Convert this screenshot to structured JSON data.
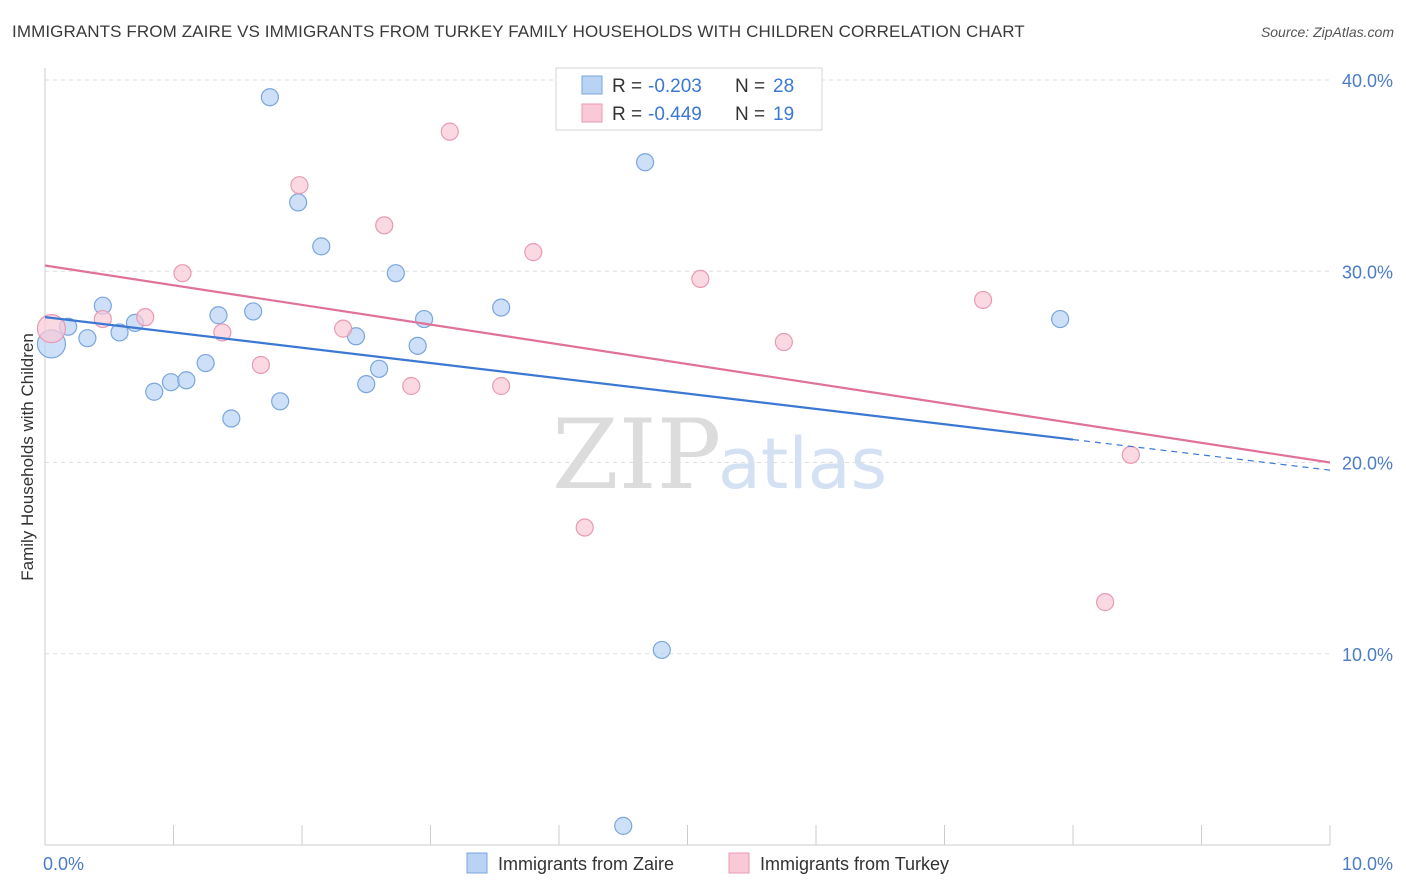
{
  "header": {
    "title": "IMMIGRANTS FROM ZAIRE VS IMMIGRANTS FROM TURKEY FAMILY HOUSEHOLDS WITH CHILDREN CORRELATION CHART",
    "source": "Source: ZipAtlas.com"
  },
  "watermark": {
    "part1": "ZIP",
    "part2": "atlas"
  },
  "colors": {
    "zaire_fill": "#b9d3f5",
    "zaire_stroke": "#7aa6de",
    "zaire_line": "#3b78d4",
    "turkey_fill": "#f9c9d7",
    "turkey_stroke": "#e99ab3",
    "turkey_line": "#e0729a",
    "tick_label": "#4a7cc7",
    "grid": "#dddddd"
  },
  "legend_top": {
    "rows": [
      {
        "r_label": "R = ",
        "r_value": "-0.203",
        "n_label": "N = ",
        "n_value": "28"
      },
      {
        "r_label": "R = ",
        "r_value": "-0.449",
        "n_label": "N = ",
        "n_value": "19"
      }
    ]
  },
  "chart_data": {
    "type": "scatter",
    "ylabel": "Family Households with Children",
    "xlim": [
      0,
      10
    ],
    "ylim": [
      0,
      40
    ],
    "x_ticks": [
      0,
      10
    ],
    "x_tick_labels": [
      "0.0%",
      "10.0%"
    ],
    "y_ticks": [
      10,
      20,
      30,
      40
    ],
    "y_tick_labels": [
      "10.0%",
      "20.0%",
      "30.0%",
      "40.0%"
    ],
    "grid": true,
    "legend_position": "bottom-center",
    "series": [
      {
        "name": "Immigrants from Zaire",
        "r": -0.203,
        "n": 28,
        "trend": {
          "x0": 0,
          "y0": 27.6,
          "x1": 10,
          "y1": 19.6,
          "solid_until_x": 8
        },
        "points": [
          [
            0.05,
            26.2
          ],
          [
            0.18,
            27.1
          ],
          [
            0.33,
            26.5
          ],
          [
            0.45,
            28.2
          ],
          [
            0.58,
            26.8
          ],
          [
            0.7,
            27.3
          ],
          [
            0.85,
            23.7
          ],
          [
            0.98,
            24.2
          ],
          [
            1.1,
            24.3
          ],
          [
            1.25,
            25.2
          ],
          [
            1.35,
            27.7
          ],
          [
            1.45,
            22.3
          ],
          [
            1.62,
            27.9
          ],
          [
            1.75,
            39.1
          ],
          [
            1.83,
            23.2
          ],
          [
            1.97,
            33.6
          ],
          [
            2.15,
            31.3
          ],
          [
            2.42,
            26.6
          ],
          [
            2.5,
            24.1
          ],
          [
            2.6,
            24.9
          ],
          [
            2.73,
            29.9
          ],
          [
            2.9,
            26.1
          ],
          [
            2.95,
            27.5
          ],
          [
            3.55,
            28.1
          ],
          [
            4.67,
            35.7
          ],
          [
            4.8,
            10.2
          ],
          [
            4.5,
            1.0
          ],
          [
            7.9,
            27.5
          ]
        ]
      },
      {
        "name": "Immigrants from Turkey",
        "r": -0.449,
        "n": 19,
        "trend": {
          "x0": 0,
          "y0": 30.3,
          "x1": 10,
          "y1": 20.0
        },
        "points": [
          [
            0.05,
            27.0
          ],
          [
            0.45,
            27.5
          ],
          [
            0.78,
            27.6
          ],
          [
            1.07,
            29.9
          ],
          [
            1.38,
            26.8
          ],
          [
            1.68,
            25.1
          ],
          [
            1.98,
            34.5
          ],
          [
            2.32,
            27.0
          ],
          [
            2.64,
            32.4
          ],
          [
            2.85,
            24.0
          ],
          [
            3.15,
            37.3
          ],
          [
            3.55,
            24.0
          ],
          [
            3.8,
            31.0
          ],
          [
            4.2,
            16.6
          ],
          [
            5.1,
            29.6
          ],
          [
            5.75,
            26.3
          ],
          [
            7.3,
            28.5
          ],
          [
            8.25,
            12.7
          ],
          [
            8.45,
            20.4
          ]
        ]
      }
    ]
  }
}
